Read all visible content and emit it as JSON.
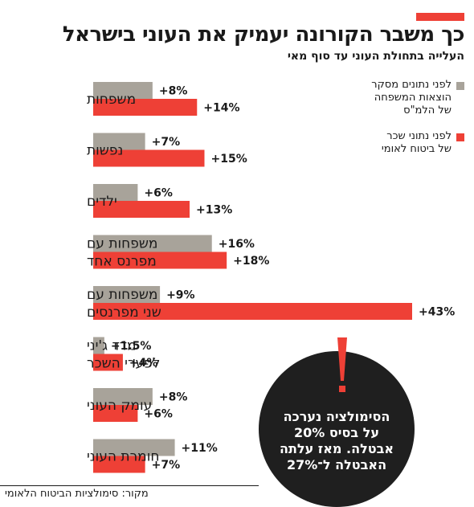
{
  "header": {
    "title": "כך משבר הקורונה יעמיק את העוני בישראל",
    "subtitle": "העלייה בתחולת העוני עד סוף מאי"
  },
  "legend": {
    "items": [
      {
        "lines": [
          "לפני נתונים מסקר",
          "הוצאות המשפחה",
          "של הלמ\"ס"
        ],
        "color": "#a8a39a"
      },
      {
        "lines": [
          "לפני נתוני שכר",
          "של ביטוח לאומי"
        ],
        "color": "#ee4036"
      }
    ]
  },
  "callout": {
    "lines": [
      "הסימולציה נערכה",
      "על בסיס 20%",
      "אבטלה. מאז עלתה",
      "האבטלה ל־27%"
    ]
  },
  "source": "מקור: סימולציות הביטוח הלאומי",
  "chart_data": {
    "type": "bar",
    "orientation": "horizontal",
    "categories": [
      [
        "משפחות"
      ],
      [
        "נפשות"
      ],
      [
        "ילדים"
      ],
      [
        "משפחות עם",
        "מפרנס אחד"
      ],
      [
        "משפחות עם",
        "שני מפרנסים"
      ],
      [
        "מדד ג'יני",
        "לפערי השכר"
      ],
      [
        "עומק העוני"
      ],
      [
        "חומרת העוני"
      ]
    ],
    "series": [
      {
        "name": "לפני נתונים מסקר הוצאות המשפחה של הלמ\"ס",
        "color": "#a8a39a",
        "values": [
          8,
          7,
          6,
          16,
          9,
          1.5,
          8,
          11
        ],
        "labels": [
          "+8%",
          "+7%",
          "+6%",
          "+16%",
          "+9%",
          "+1.5%",
          "+8%",
          "+11%"
        ]
      },
      {
        "name": "לפני נתוני שכר של ביטוח לאומי",
        "color": "#ee4036",
        "values": [
          14,
          15,
          13,
          18,
          43,
          4,
          6,
          7
        ],
        "labels": [
          "+14%",
          "+15%",
          "+13%",
          "+18%",
          "+43%",
          "+4%",
          "+6%",
          "+7%"
        ]
      }
    ],
    "xlim": [
      0,
      43
    ],
    "grid": false,
    "legend_position": "right"
  }
}
